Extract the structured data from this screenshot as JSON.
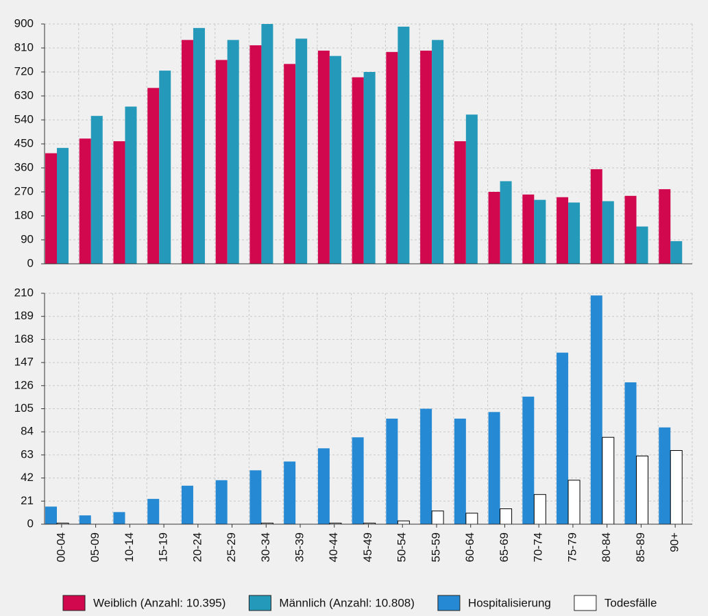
{
  "chart_data": [
    {
      "type": "bar",
      "series": [
        {
          "name": "Weiblich (Anzahl: 10.395)",
          "color": "#d2084f",
          "values": [
            415,
            470,
            460,
            660,
            840,
            765,
            820,
            750,
            800,
            700,
            795,
            800,
            460,
            270,
            260,
            250,
            355,
            255,
            280
          ]
        },
        {
          "name": "Männlich (Anzahl: 10.808)",
          "color": "#2499b9",
          "values": [
            435,
            555,
            590,
            725,
            885,
            840,
            900,
            845,
            780,
            720,
            890,
            840,
            560,
            310,
            240,
            230,
            235,
            140,
            85
          ]
        }
      ],
      "ylim": [
        0,
        900
      ],
      "yticks": [
        0,
        90,
        180,
        270,
        360,
        450,
        540,
        630,
        720,
        810,
        900
      ],
      "grid": true,
      "legend": "bottom"
    },
    {
      "type": "bar",
      "categories": [
        "00-04",
        "05-09",
        "10-14",
        "15-19",
        "20-24",
        "25-29",
        "30-34",
        "35-39",
        "40-44",
        "45-49",
        "50-54",
        "55-59",
        "60-64",
        "65-69",
        "70-74",
        "75-79",
        "80-84",
        "85-89",
        "90+"
      ],
      "series": [
        {
          "name": "Hospitalisierung",
          "color": "#2589d3",
          "values": [
            16,
            8,
            11,
            23,
            35,
            40,
            49,
            57,
            69,
            79,
            96,
            105,
            96,
            102,
            116,
            156,
            208,
            129,
            88
          ]
        },
        {
          "name": "Todesfälle",
          "color": "#ffffff",
          "values": [
            1,
            0,
            0,
            0,
            0,
            0,
            1,
            0,
            1,
            1,
            3,
            12,
            10,
            14,
            27,
            40,
            79,
            62,
            67
          ]
        }
      ],
      "ylim": [
        0,
        210
      ],
      "yticks": [
        0,
        21,
        42,
        63,
        84,
        105,
        126,
        147,
        168,
        189,
        210
      ],
      "grid": true,
      "legend": "bottom"
    }
  ]
}
